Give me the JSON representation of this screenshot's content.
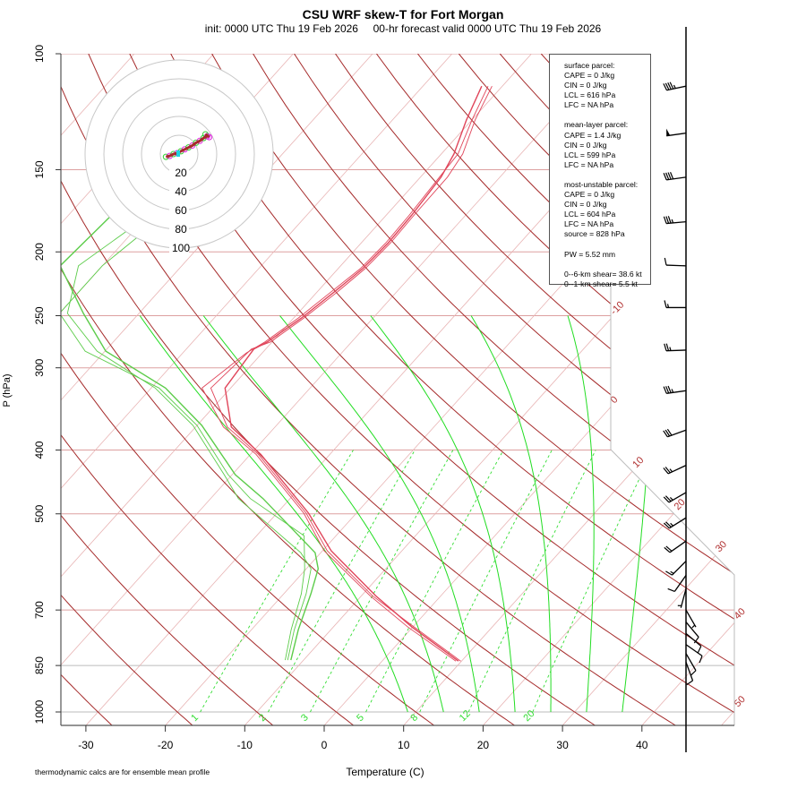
{
  "chart_data": {
    "type": "skew-t",
    "title": "CSU WRF skew-T for Fort Morgan",
    "subtitle": "init: 0000 UTC Thu 19 Feb 2026     00-hr forecast valid 0000 UTC Thu 19 Feb 2026",
    "xlabel": "Temperature (C)",
    "ylabel": "P (hPa)",
    "pressure_ticks": [
      100,
      150,
      200,
      250,
      300,
      400,
      500,
      700,
      850,
      1000
    ],
    "temperature_ticks": [
      -30,
      -20,
      -10,
      0,
      10,
      20,
      30,
      40
    ],
    "isotherm_labels": [
      -10,
      0,
      10,
      20,
      30,
      40,
      50
    ],
    "mixing_ratio_labels": [
      1,
      2,
      3,
      5,
      8,
      12,
      20
    ],
    "dry_adiabats_theta_c": [
      -40,
      -30,
      -20,
      -10,
      0,
      10,
      20,
      30,
      40,
      50,
      60,
      70,
      80,
      90,
      100,
      110,
      120,
      130,
      140,
      150,
      160,
      170,
      180,
      190,
      200
    ],
    "moist_adiabats_t1000_c": [
      9,
      13.5,
      18,
      22.5,
      27,
      31.5,
      36
    ],
    "colors": {
      "temperature": "#e0455a",
      "dewpoint": "#5ccc4a",
      "dry_adiabat": "#a52a2a",
      "isotherm": "#e8b4b4",
      "moist_adiabat": "#22dd22",
      "mixing_ratio": "#33dd33",
      "isobar": "#dda0a0"
    },
    "temperature_profiles": [
      [
        [
          837,
          9.6
        ],
        [
          743,
          -0.1
        ],
        [
          666,
          -8.2
        ],
        [
          569,
          -18.9
        ],
        [
          499,
          -26.0
        ],
        [
          406,
          -38.7
        ],
        [
          369,
          -45.5
        ],
        [
          322,
          -50.7
        ],
        [
          281,
          -51.5
        ],
        [
          274,
          -50.6
        ],
        [
          252,
          -49.0
        ],
        [
          231,
          -47.9
        ],
        [
          212,
          -46.9
        ],
        [
          194,
          -46.6
        ],
        [
          176,
          -46.8
        ],
        [
          154,
          -47.4
        ],
        [
          142,
          -48.4
        ],
        [
          126,
          -50.7
        ],
        [
          112,
          -52.6
        ]
      ],
      [
        [
          837,
          9.3
        ],
        [
          743,
          -0.6
        ],
        [
          666,
          -8.9
        ],
        [
          569,
          -19.8
        ],
        [
          499,
          -26.6
        ],
        [
          406,
          -39.3
        ],
        [
          369,
          -46.5
        ],
        [
          322,
          -53.6
        ],
        [
          285,
          -52.0
        ],
        [
          274,
          -50.9
        ],
        [
          252,
          -49.4
        ],
        [
          231,
          -48.3
        ],
        [
          212,
          -47.2
        ],
        [
          194,
          -46.9
        ],
        [
          176,
          -47.1
        ],
        [
          154,
          -47.6
        ],
        [
          142,
          -47.9
        ],
        [
          126,
          -50.0
        ],
        [
          112,
          -51.8
        ]
      ],
      [
        [
          837,
          9.9
        ],
        [
          743,
          0.2
        ],
        [
          666,
          -8.6
        ],
        [
          569,
          -19.4
        ],
        [
          499,
          -26.3
        ],
        [
          406,
          -39.0
        ],
        [
          369,
          -46.0
        ],
        [
          322,
          -52.5
        ],
        [
          281,
          -51.8
        ],
        [
          274,
          -50.2
        ],
        [
          252,
          -48.7
        ],
        [
          231,
          -47.5
        ],
        [
          212,
          -46.6
        ],
        [
          194,
          -46.3
        ],
        [
          176,
          -46.5
        ],
        [
          154,
          -46.6
        ],
        [
          142,
          -47.3
        ],
        [
          126,
          -49.6
        ],
        [
          112,
          -51.3
        ]
      ]
    ],
    "dewpoint_profiles": [
      [
        [
          834,
          -11.6
        ],
        [
          750,
          -14.1
        ],
        [
          661,
          -16.6
        ],
        [
          606,
          -18.5
        ],
        [
          573,
          -20.7
        ],
        [
          474,
          -33.4
        ],
        [
          436,
          -39.6
        ],
        [
          367,
          -49.4
        ],
        [
          322,
          -58.2
        ],
        [
          283,
          -69.9
        ],
        [
          248,
          -77.0
        ],
        [
          210,
          -85.3
        ],
        [
          177,
          -84.6
        ]
      ],
      [
        [
          834,
          -12.0
        ],
        [
          750,
          -14.6
        ],
        [
          661,
          -17.2
        ],
        [
          606,
          -19.4
        ],
        [
          573,
          -22.5
        ],
        [
          474,
          -36.5
        ],
        [
          436,
          -41.0
        ],
        [
          367,
          -50.5
        ],
        [
          322,
          -59.5
        ],
        [
          283,
          -71.0
        ],
        [
          248,
          -79.0
        ],
        [
          210,
          -83.0
        ],
        [
          177,
          -80.0
        ]
      ],
      [
        [
          834,
          -12.3
        ],
        [
          750,
          -15.0
        ],
        [
          661,
          -17.8
        ],
        [
          606,
          -20.2
        ],
        [
          540,
          -24.0
        ],
        [
          474,
          -35.0
        ],
        [
          436,
          -40.5
        ],
        [
          367,
          -50.0
        ],
        [
          322,
          -59.0
        ],
        [
          283,
          -72.5
        ],
        [
          248,
          -80.0
        ],
        [
          210,
          -80.0
        ],
        [
          177,
          -78.0
        ]
      ]
    ],
    "winds": [
      {
        "p": 112,
        "dir": 258,
        "speed": 45
      },
      {
        "p": 132,
        "dir": 262,
        "speed": 50
      },
      {
        "p": 154,
        "dir": 262,
        "speed": 40
      },
      {
        "p": 180,
        "dir": 265,
        "speed": 35
      },
      {
        "p": 210,
        "dir": 272,
        "speed": 10
      },
      {
        "p": 243,
        "dir": 270,
        "speed": 15
      },
      {
        "p": 282,
        "dir": 268,
        "speed": 25
      },
      {
        "p": 325,
        "dir": 262,
        "speed": 35
      },
      {
        "p": 373,
        "dir": 250,
        "speed": 30
      },
      {
        "p": 422,
        "dir": 245,
        "speed": 25
      },
      {
        "p": 464,
        "dir": 240,
        "speed": 25
      },
      {
        "p": 507,
        "dir": 238,
        "speed": 25
      },
      {
        "p": 550,
        "dir": 235,
        "speed": 20
      },
      {
        "p": 590,
        "dir": 225,
        "speed": 15
      },
      {
        "p": 620,
        "dir": 215,
        "speed": 10
      },
      {
        "p": 650,
        "dir": 195,
        "speed": 5
      },
      {
        "p": 700,
        "dir": 150,
        "speed": 5
      },
      {
        "p": 730,
        "dir": 140,
        "speed": 10
      },
      {
        "p": 760,
        "dir": 130,
        "speed": 10
      },
      {
        "p": 790,
        "dir": 125,
        "speed": 10
      },
      {
        "p": 815,
        "dir": 150,
        "speed": 10
      },
      {
        "p": 840,
        "dir": 160,
        "speed": 10
      }
    ],
    "hodograph": {
      "rings": [
        20,
        40,
        60,
        80,
        100
      ],
      "points": [
        [
          -14,
          -3
        ],
        [
          -10,
          -2
        ],
        [
          -6,
          0
        ],
        [
          -2,
          1
        ],
        [
          2,
          3
        ],
        [
          6,
          5
        ],
        [
          10,
          7
        ],
        [
          14,
          9
        ],
        [
          18,
          12
        ],
        [
          22,
          14
        ],
        [
          26,
          17
        ],
        [
          30,
          19
        ],
        [
          28,
          21
        ],
        [
          32,
          18
        ]
      ]
    }
  },
  "info": {
    "surface": [
      "surface parcel:",
      "CAPE = 0 J/kg",
      "CIN = 0 J/kg",
      "LCL = 616 hPa",
      "LFC = NA hPa"
    ],
    "mean_layer": [
      "mean-layer parcel:",
      "CAPE = 1.4 J/kg",
      "CIN = 0 J/kg",
      "LCL = 599 hPa",
      "LFC = NA hPa"
    ],
    "most_unstable": [
      "most-unstable parcel:",
      "CAPE = 0 J/kg",
      "CIN = 0 J/kg",
      "LCL = 604 hPa",
      "LFC = NA hPa",
      "source = 828 hPa"
    ],
    "pw": "PW =  5.52 mm",
    "shear": [
      "0--6-km shear= 38.6 kt",
      "0--1-km shear= 5.5 kt"
    ]
  },
  "footnote": "thermodynamic calcs are for ensemble mean profile"
}
